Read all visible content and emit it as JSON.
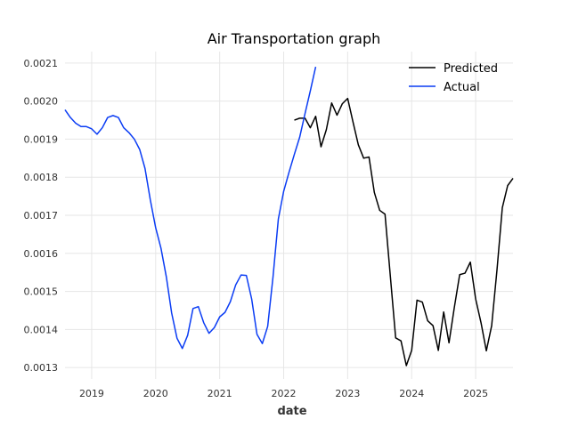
{
  "chart_data": {
    "type": "line",
    "title": "Air Transportation graph",
    "xlabel": "date",
    "ylabel": "",
    "xlim": [
      "2018-08",
      "2025-08"
    ],
    "ylim": [
      0.00127,
      0.00213
    ],
    "x_ticks": [
      "2019",
      "2020",
      "2021",
      "2022",
      "2023",
      "2024",
      "2025"
    ],
    "y_ticks": [
      "0.0013",
      "0.0014",
      "0.0015",
      "0.0016",
      "0.0017",
      "0.0018",
      "0.0019",
      "0.0020",
      "0.0021"
    ],
    "grid": true,
    "legend_position": "top-right",
    "series": [
      {
        "name": "Predicted",
        "color": "#000000",
        "x": [
          "2022-03",
          "2022-04",
          "2022-05",
          "2022-06",
          "2022-07",
          "2022-08",
          "2022-09",
          "2022-10",
          "2022-11",
          "2022-12",
          "2023-01",
          "2023-02",
          "2023-03",
          "2023-04",
          "2023-05",
          "2023-06",
          "2023-07",
          "2023-08",
          "2023-09",
          "2023-10",
          "2023-11",
          "2023-12",
          "2024-01",
          "2024-02",
          "2024-03",
          "2024-04",
          "2024-05",
          "2024-06",
          "2024-07",
          "2024-08",
          "2024-09",
          "2024-10",
          "2024-11",
          "2024-12",
          "2025-01",
          "2025-02",
          "2025-03",
          "2025-04",
          "2025-05",
          "2025-06",
          "2025-07",
          "2025-08"
        ],
        "values": [
          0.00195,
          0.001955,
          0.001955,
          0.00193,
          0.00196,
          0.00188,
          0.001925,
          0.001995,
          0.001963,
          0.001993,
          0.002007,
          0.001945,
          0.001885,
          0.00185,
          0.001853,
          0.00176,
          0.001713,
          0.001703,
          0.00154,
          0.001378,
          0.00137,
          0.001305,
          0.001345,
          0.001477,
          0.001472,
          0.001423,
          0.00141,
          0.001345,
          0.001446,
          0.001365,
          0.001458,
          0.001544,
          0.001548,
          0.001577,
          0.00148,
          0.001418,
          0.001344,
          0.00141,
          0.001557,
          0.00172,
          0.001778,
          0.001797
        ]
      },
      {
        "name": "Actual",
        "color": "#0a3cf4",
        "x": [
          "2018-08",
          "2018-09",
          "2018-10",
          "2018-11",
          "2018-12",
          "2019-01",
          "2019-02",
          "2019-03",
          "2019-04",
          "2019-05",
          "2019-06",
          "2019-07",
          "2019-08",
          "2019-09",
          "2019-10",
          "2019-11",
          "2019-12",
          "2020-01",
          "2020-02",
          "2020-03",
          "2020-04",
          "2020-05",
          "2020-06",
          "2020-07",
          "2020-08",
          "2020-09",
          "2020-10",
          "2020-11",
          "2020-12",
          "2021-01",
          "2021-02",
          "2021-03",
          "2021-04",
          "2021-05",
          "2021-06",
          "2021-07",
          "2021-08",
          "2021-09",
          "2021-10",
          "2021-11",
          "2021-12",
          "2022-01",
          "2022-02",
          "2022-03",
          "2022-04",
          "2022-05",
          "2022-06",
          "2022-07"
        ],
        "values": [
          0.001977,
          0.001957,
          0.001942,
          0.001933,
          0.001933,
          0.001927,
          0.001913,
          0.00193,
          0.001957,
          0.001962,
          0.001957,
          0.00193,
          0.001917,
          0.0019,
          0.001873,
          0.001823,
          0.00174,
          0.001667,
          0.001613,
          0.001538,
          0.001443,
          0.001377,
          0.00135,
          0.001385,
          0.001455,
          0.00146,
          0.001418,
          0.00139,
          0.001405,
          0.001433,
          0.001445,
          0.001473,
          0.001517,
          0.001543,
          0.001542,
          0.00148,
          0.001387,
          0.001363,
          0.001408,
          0.001538,
          0.00169,
          0.001763,
          0.001813,
          0.00186,
          0.001905,
          0.001967,
          0.002027,
          0.00209
        ]
      }
    ]
  }
}
